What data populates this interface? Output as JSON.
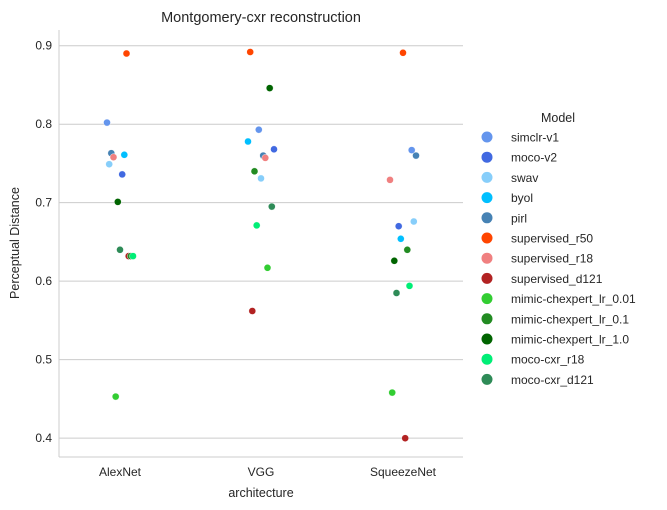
{
  "chart_data": {
    "type": "scatter",
    "title": "Montgomery-cxr reconstruction",
    "xlabel": "architecture",
    "ylabel": "Perceptual Distance",
    "categories": [
      "AlexNet",
      "VGG",
      "SqueezeNet"
    ],
    "ylim": [
      0.376,
      0.92
    ],
    "yticks": [
      0.4,
      0.5,
      0.6,
      0.7,
      0.8,
      0.9
    ],
    "grid": "horizontal",
    "legend": {
      "title": "Model",
      "placement": "right"
    },
    "series": [
      {
        "name": "simclr-v1",
        "color": "#6495ed",
        "values": [
          0.802,
          0.793,
          0.767
        ]
      },
      {
        "name": "moco-v2",
        "color": "#4169e1",
        "values": [
          0.736,
          0.768,
          0.67
        ]
      },
      {
        "name": "swav",
        "color": "#87cefa",
        "values": [
          0.749,
          0.731,
          0.676
        ]
      },
      {
        "name": "byol",
        "color": "#00bfff",
        "values": [
          0.761,
          0.778,
          0.654
        ]
      },
      {
        "name": "pirl",
        "color": "#4682b4",
        "values": [
          0.763,
          0.76,
          0.76
        ]
      },
      {
        "name": "supervised_r50",
        "color": "#ff4500",
        "values": [
          0.89,
          0.892,
          0.891
        ]
      },
      {
        "name": "supervised_r18",
        "color": "#f08080",
        "values": [
          0.758,
          0.757,
          0.729
        ]
      },
      {
        "name": "supervised_d121",
        "color": "#b22222",
        "values": [
          0.632,
          0.562,
          0.4
        ]
      },
      {
        "name": "mimic-chexpert_lr_0.01",
        "color": "#32cd32",
        "values": [
          0.453,
          0.617,
          0.458
        ]
      },
      {
        "name": "mimic-chexpert_lr_0.1",
        "color": "#228b22",
        "values": [
          0.632,
          0.74,
          0.64
        ]
      },
      {
        "name": "mimic-chexpert_lr_1.0",
        "color": "#006400",
        "values": [
          0.701,
          0.846,
          0.626
        ]
      },
      {
        "name": "moco-cxr_r18",
        "color": "#00ee76",
        "values": [
          0.632,
          0.671,
          0.594
        ]
      },
      {
        "name": "moco-cxr_d121",
        "color": "#2e8b57",
        "values": [
          0.64,
          0.695,
          0.585
        ]
      }
    ]
  }
}
